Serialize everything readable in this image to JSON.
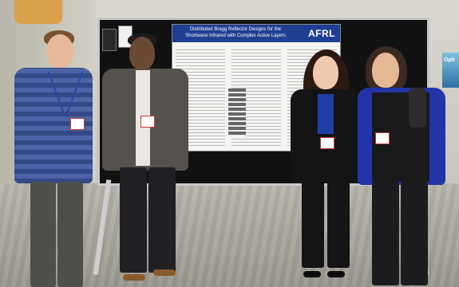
{
  "poster": {
    "title_line1": "Distributed Bragg Reflector Designs for the",
    "title_line2": "Shortwave Infrared with Complex Active Layers",
    "logo": "AFRL"
  },
  "side_sign": {
    "text": "Opti"
  }
}
